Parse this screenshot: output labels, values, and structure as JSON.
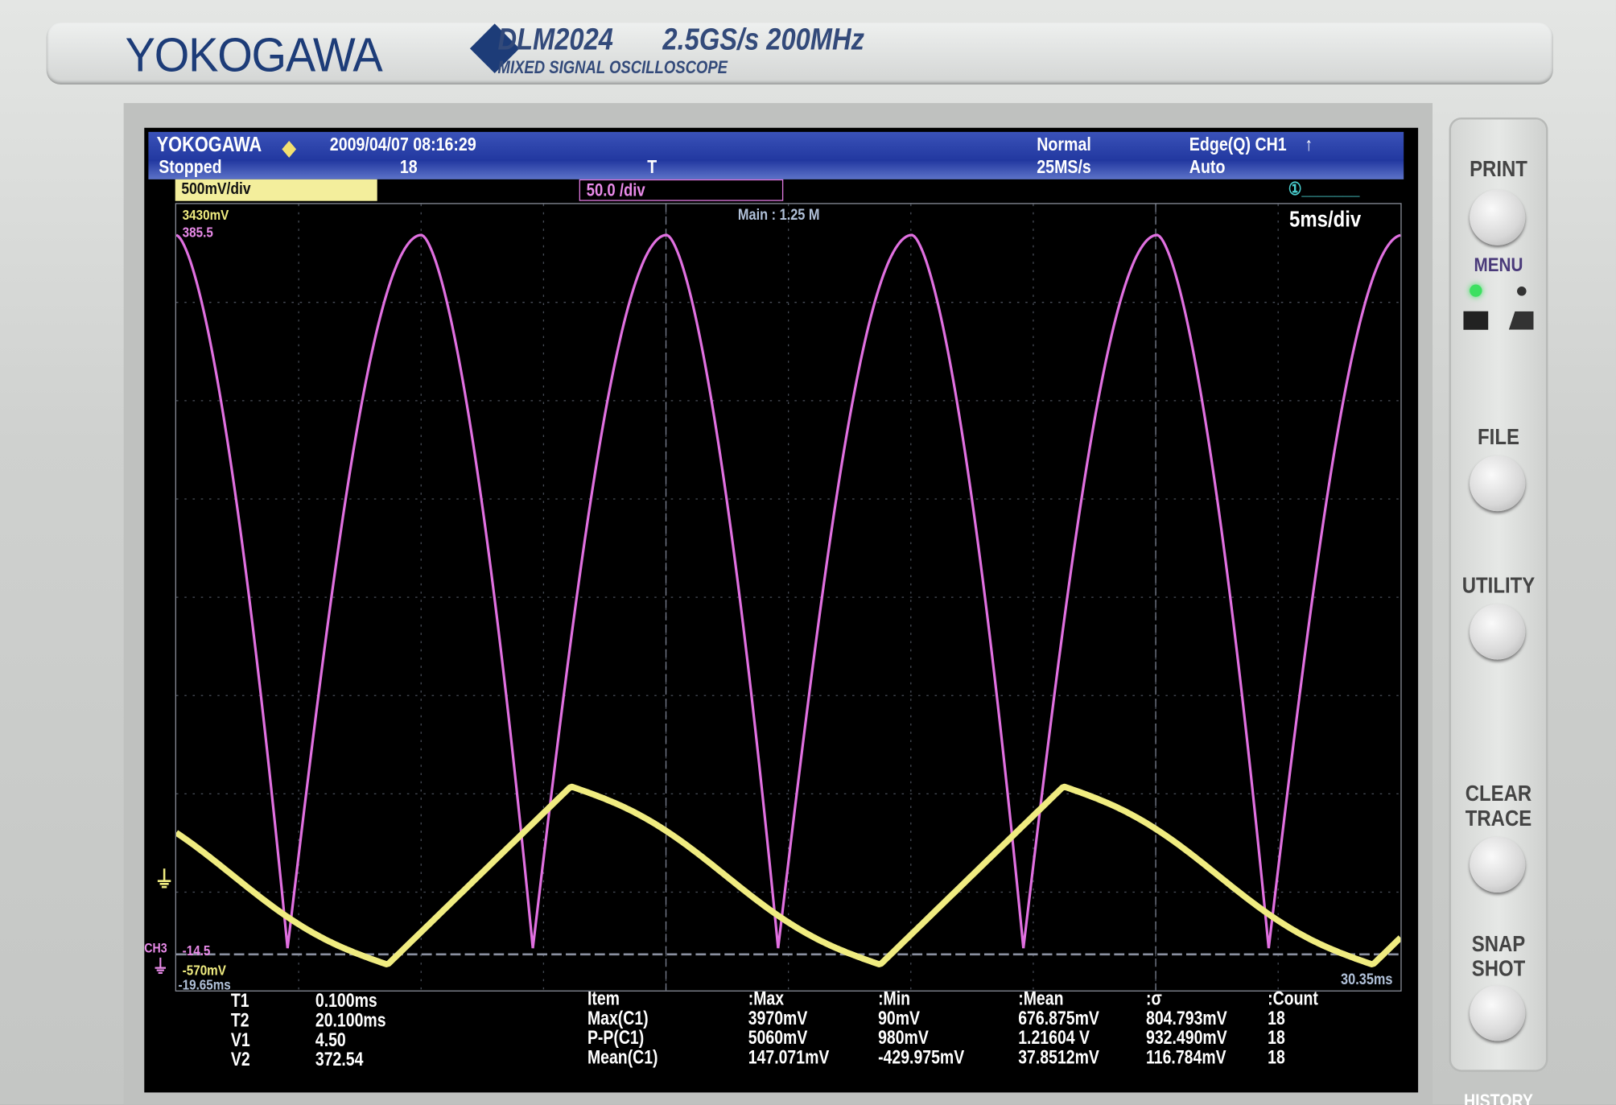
{
  "device": {
    "brand": "YOKOGAWA",
    "model": "DLM2024",
    "spec": "2.5GS/s 200MHz",
    "subtitle": "MIXED SIGNAL OSCILLOSCOPE"
  },
  "status": {
    "brand": "YOKOGAWA",
    "datetime": "2009/04/07 08:16:29",
    "state": "Stopped",
    "acq_count": "18",
    "mode": "Normal",
    "sample_rate": "25MS/s",
    "trigger": "Edge(Q) CH1",
    "trigger_mode": "Auto"
  },
  "channels": {
    "ch1": {
      "label": "500mV/div",
      "color": "#f3ee9c"
    },
    "ch3": {
      "label": "50.0 /div",
      "color": "#e98ae9"
    },
    "cursor_indicator": "①_______"
  },
  "grid": {
    "main": "Main : 1.25 M",
    "timebase": "5ms/div",
    "ch1_top": "3430mV",
    "ch3_top": "385.5",
    "ch3_tag": "CH3",
    "ch3_bottom": "-14.5",
    "ch1_bottom": "-570mV",
    "time_start": "-19.65ms",
    "time_end": "30.35ms"
  },
  "cursors": [
    {
      "name": "T1",
      "value": "0.100ms"
    },
    {
      "name": "T2",
      "value": "20.100ms"
    },
    {
      "name": "V1",
      "value": "4.50"
    },
    {
      "name": "V2",
      "value": "372.54"
    }
  ],
  "stats": {
    "headers": [
      "Item",
      ":Max",
      ":Min",
      ":Mean",
      ":σ",
      ":Count"
    ],
    "rows": [
      [
        "Max(C1)",
        "3970mV",
        "90mV",
        "676.875mV",
        "804.793mV",
        "18"
      ],
      [
        "P-P(C1)",
        "5060mV",
        "980mV",
        "1.21604 V",
        "932.490mV",
        "18"
      ],
      [
        "Mean(C1)",
        "147.071mV",
        "-429.975mV",
        "37.8512mV",
        "116.784mV",
        "18"
      ]
    ]
  },
  "buttons": {
    "print": "PRINT",
    "menu": "MENU",
    "file": "FILE",
    "utility": "UTILITY",
    "clear_trace": [
      "CLEAR",
      "TRACE"
    ],
    "snap_shot": [
      "SNAP",
      "SHOT"
    ],
    "history": "HISTORY"
  },
  "colors": {
    "ch1": "#f0ec80",
    "ch3": "#e070e0",
    "header": "#2238a0"
  }
}
